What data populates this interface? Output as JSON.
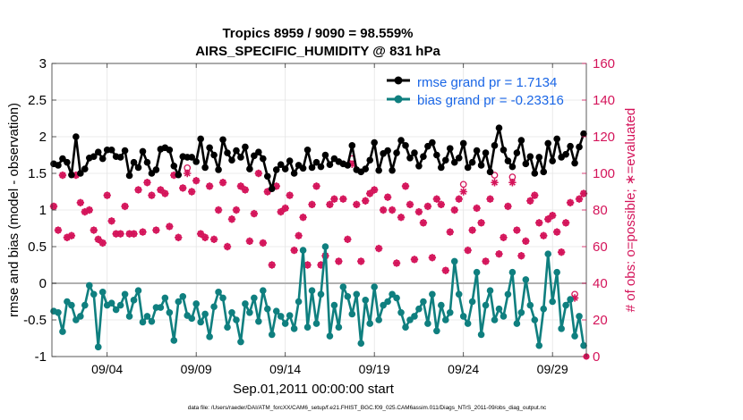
{
  "chart_data": {
    "type": "line",
    "title": "Tropics 8959 / 9090 = 98.559%",
    "subtitle": "AIRS_SPECIFIC_HUMIDITY @ 831 hPa",
    "xlabel": "Sep.01,2011 00:00:00 start",
    "ylabel": "rmse and bias (model - observation)",
    "ylabel_right": "# of obs: o=possible; ∗=evaluated",
    "footer": "data file: /Users/raeder/DAI/ATM_forcXX/CAM6_setup/f.e21.FHIST_BGC.f09_025.CAM6assim.011/Diags_NTrS_2011-09/obs_diag_output.nc",
    "xlim": [
      0.9,
      30.9
    ],
    "ylim": [
      -1,
      3
    ],
    "ylim_right": [
      0,
      160
    ],
    "x_ticks": [
      4,
      9,
      14,
      19,
      24,
      29
    ],
    "x_tick_labels": [
      "09/04",
      "09/09",
      "09/14",
      "09/19",
      "09/24",
      "09/29"
    ],
    "y_ticks": [
      -1,
      -0.5,
      0,
      0.5,
      1,
      1.5,
      2,
      2.5,
      3
    ],
    "y_tick_labels": [
      "-1",
      "-0.5",
      "0",
      "0.5",
      "1",
      "1.5",
      "2",
      "2.5",
      "3"
    ],
    "y_right_ticks": [
      0,
      20,
      40,
      60,
      80,
      100,
      120,
      140,
      160
    ],
    "y_right_tick_labels": [
      "0",
      "20",
      "40",
      "60",
      "80",
      "100",
      "120",
      "140",
      "160"
    ],
    "legend_position": "top-right",
    "colors": {
      "rmse": "#000000",
      "bias": "#0f7f7f",
      "obs": "#d4145a",
      "legend_text": "#1a66e6",
      "zero_line": "#b0b0b0"
    },
    "series": [
      {
        "name": "rmse grand pr = 1.7134",
        "axis": "left",
        "x": [
          1.0,
          1.25,
          1.5,
          1.75,
          2.0,
          2.25,
          2.5,
          2.75,
          3.0,
          3.25,
          3.5,
          3.75,
          4.0,
          4.25,
          4.5,
          4.75,
          5.0,
          5.25,
          5.5,
          5.75,
          6.0,
          6.25,
          6.5,
          6.75,
          7.0,
          7.25,
          7.5,
          7.75,
          8.0,
          8.25,
          8.5,
          8.75,
          9.0,
          9.25,
          9.5,
          9.75,
          10.0,
          10.25,
          10.5,
          10.75,
          11.0,
          11.25,
          11.5,
          11.75,
          12.0,
          12.25,
          12.5,
          12.75,
          13.0,
          13.25,
          13.5,
          13.75,
          14.0,
          14.25,
          14.5,
          14.75,
          15.0,
          15.25,
          15.5,
          15.75,
          16.0,
          16.25,
          16.5,
          16.75,
          17.0,
          17.25,
          17.5,
          17.75,
          18.0,
          18.25,
          18.5,
          18.75,
          19.0,
          19.25,
          19.5,
          19.75,
          20.0,
          20.25,
          20.5,
          20.75,
          21.0,
          21.25,
          21.5,
          21.75,
          22.0,
          22.25,
          22.5,
          22.75,
          23.0,
          23.25,
          23.5,
          23.75,
          24.0,
          24.25,
          24.5,
          24.75,
          25.0,
          25.25,
          25.5,
          25.75,
          26.0,
          26.25,
          26.5,
          26.75,
          27.0,
          27.25,
          27.5,
          27.75,
          28.0,
          28.25,
          28.5,
          28.75,
          29.0,
          29.25,
          29.5,
          29.75,
          30.0,
          30.25,
          30.5,
          30.75
        ],
        "values": [
          1.63,
          1.61,
          1.7,
          1.65,
          1.48,
          2.0,
          1.5,
          1.56,
          1.71,
          1.73,
          1.79,
          1.7,
          1.82,
          1.82,
          1.73,
          1.72,
          1.81,
          1.47,
          1.65,
          1.58,
          1.8,
          1.65,
          1.5,
          1.55,
          1.83,
          1.85,
          1.82,
          1.6,
          1.48,
          1.73,
          1.72,
          1.72,
          1.66,
          1.97,
          1.58,
          1.85,
          1.75,
          1.55,
          1.96,
          1.78,
          1.68,
          1.81,
          1.72,
          1.86,
          1.56,
          1.74,
          1.79,
          1.7,
          1.46,
          1.29,
          1.55,
          1.62,
          1.56,
          1.67,
          1.5,
          1.61,
          1.57,
          1.82,
          1.58,
          1.65,
          1.59,
          1.75,
          1.62,
          1.7,
          1.66,
          1.63,
          1.61,
          1.88,
          1.55,
          1.52,
          1.56,
          1.68,
          1.92,
          1.54,
          1.77,
          1.81,
          1.54,
          1.78,
          1.95,
          1.88,
          1.71,
          1.78,
          1.6,
          1.73,
          1.87,
          1.92,
          1.75,
          1.58,
          1.68,
          1.84,
          1.65,
          1.71,
          1.91,
          1.58,
          1.65,
          1.81,
          1.61,
          1.78,
          1.52,
          1.88,
          2.12,
          1.82,
          1.67,
          1.59,
          1.78,
          1.95,
          1.63,
          1.73,
          1.5,
          1.72,
          1.52,
          1.91,
          1.67,
          1.97,
          1.72,
          1.76,
          1.87,
          1.64,
          1.86,
          2.04
        ]
      },
      {
        "name": "bias grand pr = -0.23316",
        "axis": "left",
        "x": [
          1.0,
          1.25,
          1.5,
          1.75,
          2.0,
          2.25,
          2.5,
          2.75,
          3.0,
          3.25,
          3.5,
          3.75,
          4.0,
          4.25,
          4.5,
          4.75,
          5.0,
          5.25,
          5.5,
          5.75,
          6.0,
          6.25,
          6.5,
          6.75,
          7.0,
          7.25,
          7.5,
          7.75,
          8.0,
          8.25,
          8.5,
          8.75,
          9.0,
          9.25,
          9.5,
          9.75,
          10.0,
          10.25,
          10.5,
          10.75,
          11.0,
          11.25,
          11.5,
          11.75,
          12.0,
          12.25,
          12.5,
          12.75,
          13.0,
          13.25,
          13.5,
          13.75,
          14.0,
          14.25,
          14.5,
          14.75,
          15.0,
          15.25,
          15.5,
          15.75,
          16.0,
          16.25,
          16.5,
          16.75,
          17.0,
          17.25,
          17.5,
          17.75,
          18.0,
          18.25,
          18.5,
          18.75,
          19.0,
          19.25,
          19.5,
          19.75,
          20.0,
          20.25,
          20.5,
          20.75,
          21.0,
          21.25,
          21.5,
          21.75,
          22.0,
          22.25,
          22.5,
          22.75,
          23.0,
          23.25,
          23.5,
          23.75,
          24.0,
          24.25,
          24.5,
          24.75,
          25.0,
          25.25,
          25.5,
          25.75,
          26.0,
          26.25,
          26.5,
          26.75,
          27.0,
          27.25,
          27.5,
          27.75,
          28.0,
          28.25,
          28.5,
          28.75,
          29.0,
          29.25,
          29.5,
          29.75,
          30.0,
          30.25,
          30.5,
          30.75
        ],
        "values": [
          -0.38,
          -0.4,
          -0.66,
          -0.25,
          -0.3,
          -0.5,
          -0.45,
          -0.3,
          -0.03,
          -0.15,
          -0.87,
          -0.12,
          -0.3,
          -0.27,
          -0.36,
          -0.3,
          -0.15,
          -0.45,
          -0.23,
          -0.1,
          -0.53,
          -0.45,
          -0.52,
          -0.33,
          -0.33,
          -0.2,
          -0.4,
          -0.78,
          -0.25,
          -0.18,
          -0.44,
          -0.48,
          -0.28,
          -0.53,
          -0.42,
          -0.73,
          -0.32,
          -0.12,
          -0.2,
          -0.6,
          -0.4,
          -0.5,
          -0.8,
          -0.28,
          -0.4,
          -0.2,
          -0.52,
          -0.1,
          -0.35,
          -0.7,
          -0.38,
          -0.45,
          -0.55,
          -0.44,
          -0.62,
          -0.25,
          0.45,
          -0.6,
          -0.1,
          -0.55,
          -0.15,
          0.5,
          -0.72,
          -0.3,
          -0.6,
          -0.05,
          -0.18,
          -0.42,
          -0.15,
          -0.82,
          -0.23,
          -0.55,
          -0.05,
          -0.5,
          -0.3,
          -0.25,
          -0.15,
          -0.2,
          -0.4,
          -0.6,
          -0.5,
          -0.45,
          -0.35,
          -0.25,
          -0.55,
          -0.15,
          -0.65,
          -0.3,
          -0.5,
          -0.4,
          0.3,
          -0.15,
          -0.45,
          -0.55,
          -0.25,
          0.15,
          -0.7,
          -0.3,
          -0.1,
          -0.5,
          -0.35,
          -0.45,
          -0.15,
          0.15,
          -0.55,
          -0.4,
          0.05,
          -0.3,
          -0.5,
          -0.85,
          -0.35,
          0.4,
          -0.25,
          0.15,
          -0.62,
          -0.3,
          -0.22,
          -0.72,
          -0.45,
          -0.85
        ]
      },
      {
        "name": "possible obs",
        "axis": "right",
        "x": [
          1.0,
          1.25,
          1.5,
          1.75,
          2.0,
          2.25,
          2.5,
          2.75,
          3.0,
          3.25,
          3.5,
          3.75,
          4.0,
          4.25,
          4.5,
          4.75,
          5.0,
          5.25,
          5.5,
          5.75,
          6.0,
          6.25,
          6.5,
          6.75,
          7.0,
          7.25,
          7.5,
          7.75,
          8.0,
          8.25,
          8.5,
          8.75,
          9.0,
          9.25,
          9.5,
          9.75,
          10.0,
          10.25,
          10.5,
          10.75,
          11.0,
          11.25,
          11.5,
          11.75,
          12.0,
          12.25,
          12.5,
          12.75,
          13.0,
          13.25,
          13.5,
          13.75,
          14.0,
          14.25,
          14.5,
          14.75,
          15.0,
          15.25,
          15.5,
          15.75,
          16.0,
          16.25,
          16.5,
          16.75,
          17.0,
          17.25,
          17.5,
          17.75,
          18.0,
          18.25,
          18.5,
          18.75,
          19.0,
          19.25,
          19.5,
          19.75,
          20.0,
          20.25,
          20.5,
          20.75,
          21.0,
          21.25,
          21.5,
          21.75,
          22.0,
          22.25,
          22.5,
          22.75,
          23.0,
          23.25,
          23.5,
          23.75,
          24.0,
          24.25,
          24.5,
          24.75,
          25.0,
          25.25,
          25.5,
          25.75,
          26.0,
          26.25,
          26.5,
          26.75,
          27.0,
          27.25,
          27.5,
          27.75,
          28.0,
          28.25,
          28.5,
          28.75,
          29.0,
          29.25,
          29.5,
          29.75,
          30.0,
          30.25,
          30.5,
          30.75
        ],
        "values": [
          82,
          69,
          99,
          65,
          66,
          99,
          84,
          79,
          80,
          69,
          64,
          62,
          88,
          74,
          67,
          67,
          82,
          67,
          67,
          91,
          68,
          95,
          88,
          69,
          91,
          89,
          71,
          99,
          65,
          92,
          103,
          90,
          96,
          67,
          65,
          93,
          64,
          80,
          95,
          60,
          75,
          80,
          93,
          91,
          63,
          78,
          100,
          62,
          90,
          50,
          93,
          79,
          81,
          88,
          58,
          66,
          76,
          50,
          83,
          93,
          50,
          55,
          83,
          86,
          52,
          86,
          64,
          108,
          83,
          52,
          85,
          89,
          91,
          59,
          80,
          87,
          80,
          51,
          76,
          93,
          83,
          53,
          79,
          73,
          82,
          54,
          86,
          83,
          47,
          68,
          80,
          86,
          94,
          58,
          69,
          81,
          73,
          52,
          86,
          99,
          56,
          65,
          82,
          98,
          69,
          55,
          63,
          85,
          88,
          73,
          66,
          75,
          77,
          68,
          57,
          73,
          84,
          34,
          86,
          89
        ],
        "marker": "o"
      },
      {
        "name": "evaluated obs",
        "axis": "right",
        "x": [
          1.0,
          1.25,
          1.5,
          1.75,
          2.0,
          2.25,
          2.5,
          2.75,
          3.0,
          3.25,
          3.5,
          3.75,
          4.0,
          4.25,
          4.5,
          4.75,
          5.0,
          5.25,
          5.5,
          5.75,
          6.0,
          6.25,
          6.5,
          6.75,
          7.0,
          7.25,
          7.5,
          7.75,
          8.0,
          8.25,
          8.5,
          8.75,
          9.0,
          9.25,
          9.5,
          9.75,
          10.0,
          10.25,
          10.5,
          10.75,
          11.0,
          11.25,
          11.5,
          11.75,
          12.0,
          12.25,
          12.5,
          12.75,
          13.0,
          13.25,
          13.5,
          13.75,
          14.0,
          14.25,
          14.5,
          14.75,
          15.0,
          15.25,
          15.5,
          15.75,
          16.0,
          16.25,
          16.5,
          16.75,
          17.0,
          17.25,
          17.5,
          17.75,
          18.0,
          18.25,
          18.5,
          18.75,
          19.0,
          19.25,
          19.5,
          19.75,
          20.0,
          20.25,
          20.5,
          20.75,
          21.0,
          21.25,
          21.5,
          21.75,
          22.0,
          22.25,
          22.5,
          22.75,
          23.0,
          23.25,
          23.5,
          23.75,
          24.0,
          24.25,
          24.5,
          24.75,
          25.0,
          25.25,
          25.5,
          25.75,
          26.0,
          26.25,
          26.5,
          26.75,
          27.0,
          27.25,
          27.5,
          27.75,
          28.0,
          28.25,
          28.5,
          28.75,
          29.0,
          29.25,
          29.5,
          29.75,
          30.0,
          30.25,
          30.5,
          30.75
        ],
        "values": [
          82,
          69,
          99,
          65,
          66,
          99,
          84,
          79,
          80,
          69,
          64,
          62,
          88,
          74,
          67,
          67,
          82,
          67,
          67,
          91,
          68,
          95,
          88,
          69,
          91,
          89,
          71,
          99,
          65,
          92,
          100,
          90,
          96,
          67,
          65,
          93,
          64,
          80,
          95,
          60,
          75,
          80,
          93,
          91,
          63,
          78,
          100,
          62,
          90,
          50,
          93,
          79,
          81,
          88,
          58,
          66,
          76,
          50,
          83,
          93,
          50,
          55,
          83,
          86,
          52,
          86,
          64,
          105,
          83,
          52,
          85,
          89,
          91,
          59,
          80,
          87,
          80,
          51,
          76,
          93,
          83,
          53,
          79,
          73,
          82,
          54,
          86,
          83,
          47,
          68,
          80,
          86,
          90,
          58,
          69,
          81,
          73,
          52,
          86,
          95,
          56,
          65,
          82,
          95,
          69,
          55,
          63,
          85,
          88,
          73,
          66,
          75,
          77,
          68,
          57,
          73,
          84,
          32,
          86,
          89
        ],
        "marker": "*"
      }
    ],
    "extra_points": [
      {
        "series": "evaluated obs",
        "x": 30.9,
        "value": 0
      }
    ]
  }
}
